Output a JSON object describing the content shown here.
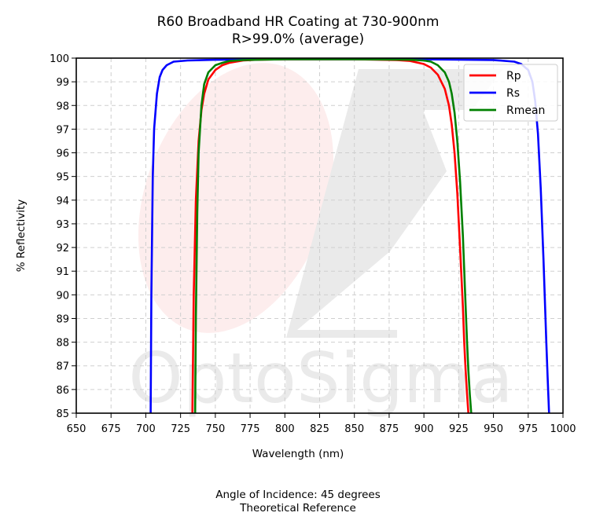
{
  "chart_data": {
    "type": "line",
    "title": "R60 Broadband HR Coating at 730-900nm",
    "subtitle": "R>99.0% (average)",
    "xlabel": "Wavelength (nm)",
    "ylabel": "% Reflectivity",
    "xlim": [
      650,
      1000
    ],
    "ylim": [
      85,
      100
    ],
    "x_ticks": [
      "650",
      "675",
      "700",
      "725",
      "750",
      "775",
      "800",
      "825",
      "850",
      "875",
      "900",
      "925",
      "950",
      "975",
      "1000"
    ],
    "y_ticks": [
      "85",
      "86",
      "87",
      "88",
      "89",
      "90",
      "91",
      "92",
      "93",
      "94",
      "95",
      "96",
      "97",
      "98",
      "99",
      "100"
    ],
    "grid": true,
    "legend_position": "top-right",
    "series": [
      {
        "name": "Rp",
        "color": "#ff0000",
        "x": [
          733.5,
          734.5,
          736,
          738,
          740,
          742,
          745,
          750,
          755,
          760,
          770,
          780,
          800,
          850,
          880,
          890,
          900,
          905,
          910,
          915,
          918,
          920,
          922,
          924,
          926,
          928,
          929,
          930,
          931,
          932
        ],
        "y": [
          85,
          90,
          94,
          96.5,
          97.8,
          98.5,
          99.1,
          99.5,
          99.7,
          99.8,
          99.9,
          99.93,
          99.95,
          99.95,
          99.92,
          99.88,
          99.75,
          99.6,
          99.3,
          98.7,
          98.0,
          97.2,
          96.0,
          94.3,
          92.0,
          89.5,
          88.0,
          86.8,
          85.8,
          85
        ]
      },
      {
        "name": "Rs",
        "color": "#0000ff",
        "x": [
          703.5,
          704,
          705,
          706,
          708,
          710,
          712,
          715,
          720,
          730,
          750,
          800,
          900,
          950,
          965,
          970,
          975,
          978,
          980,
          982,
          984,
          986,
          988,
          989,
          990
        ],
        "y": [
          85,
          90,
          95,
          97,
          98.5,
          99.2,
          99.5,
          99.7,
          99.85,
          99.9,
          99.93,
          99.95,
          99.95,
          99.92,
          99.85,
          99.75,
          99.5,
          99.0,
          98.2,
          96.8,
          94.5,
          91.5,
          88.0,
          86.5,
          85
        ]
      },
      {
        "name": "Rmean",
        "color": "#008000",
        "x": [
          735.5,
          736,
          737,
          738,
          740,
          742,
          745,
          750,
          755,
          760,
          770,
          800,
          850,
          890,
          900,
          905,
          910,
          915,
          918,
          920,
          922,
          924,
          926,
          928,
          930,
          931,
          932,
          933,
          934
        ],
        "y": [
          85,
          89,
          93.5,
          96,
          98,
          98.9,
          99.4,
          99.7,
          99.8,
          99.88,
          99.92,
          99.95,
          99.95,
          99.93,
          99.9,
          99.85,
          99.7,
          99.4,
          99.0,
          98.5,
          97.7,
          96.5,
          94.8,
          92.5,
          89.5,
          88.0,
          86.8,
          85.8,
          85
        ]
      }
    ]
  },
  "watermark": {
    "text": "OptoSigma"
  },
  "footer": {
    "line1": "Angle of Incidence: 45 degrees",
    "line2": "Theoretical Reference"
  }
}
